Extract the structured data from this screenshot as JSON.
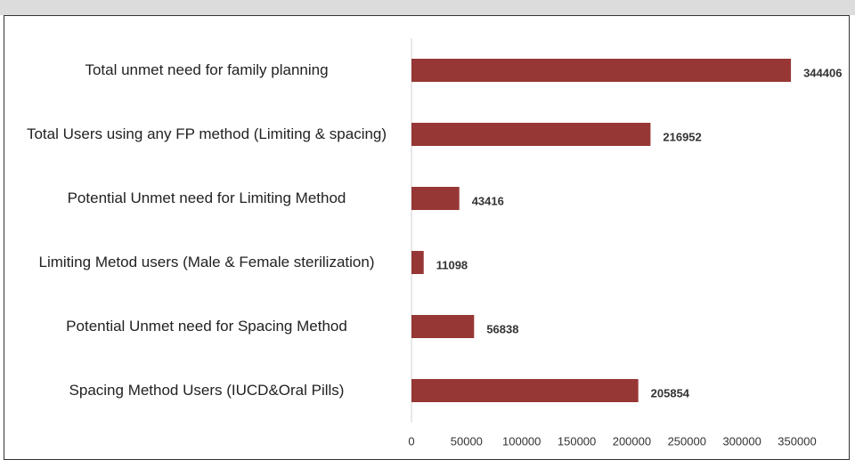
{
  "chart_data": {
    "type": "bar",
    "orientation": "horizontal",
    "categories": [
      "Total unmet need for family planning",
      "Total Users using any FP method (Limiting & spacing)",
      "Potential Unmet need for Limiting Method",
      "Limiting Metod users (Male & Female sterilization)",
      "Potential Unmet need for Spacing  Method",
      "Spacing Method Users  (IUCD&Oral Pills)"
    ],
    "values": [
      344406,
      216952,
      43416,
      11098,
      56838,
      205854
    ],
    "color": "#973735",
    "xlim": [
      0,
      350000
    ],
    "xticks": [
      0,
      50000,
      100000,
      150000,
      200000,
      250000,
      300000,
      350000
    ],
    "grid": false
  }
}
